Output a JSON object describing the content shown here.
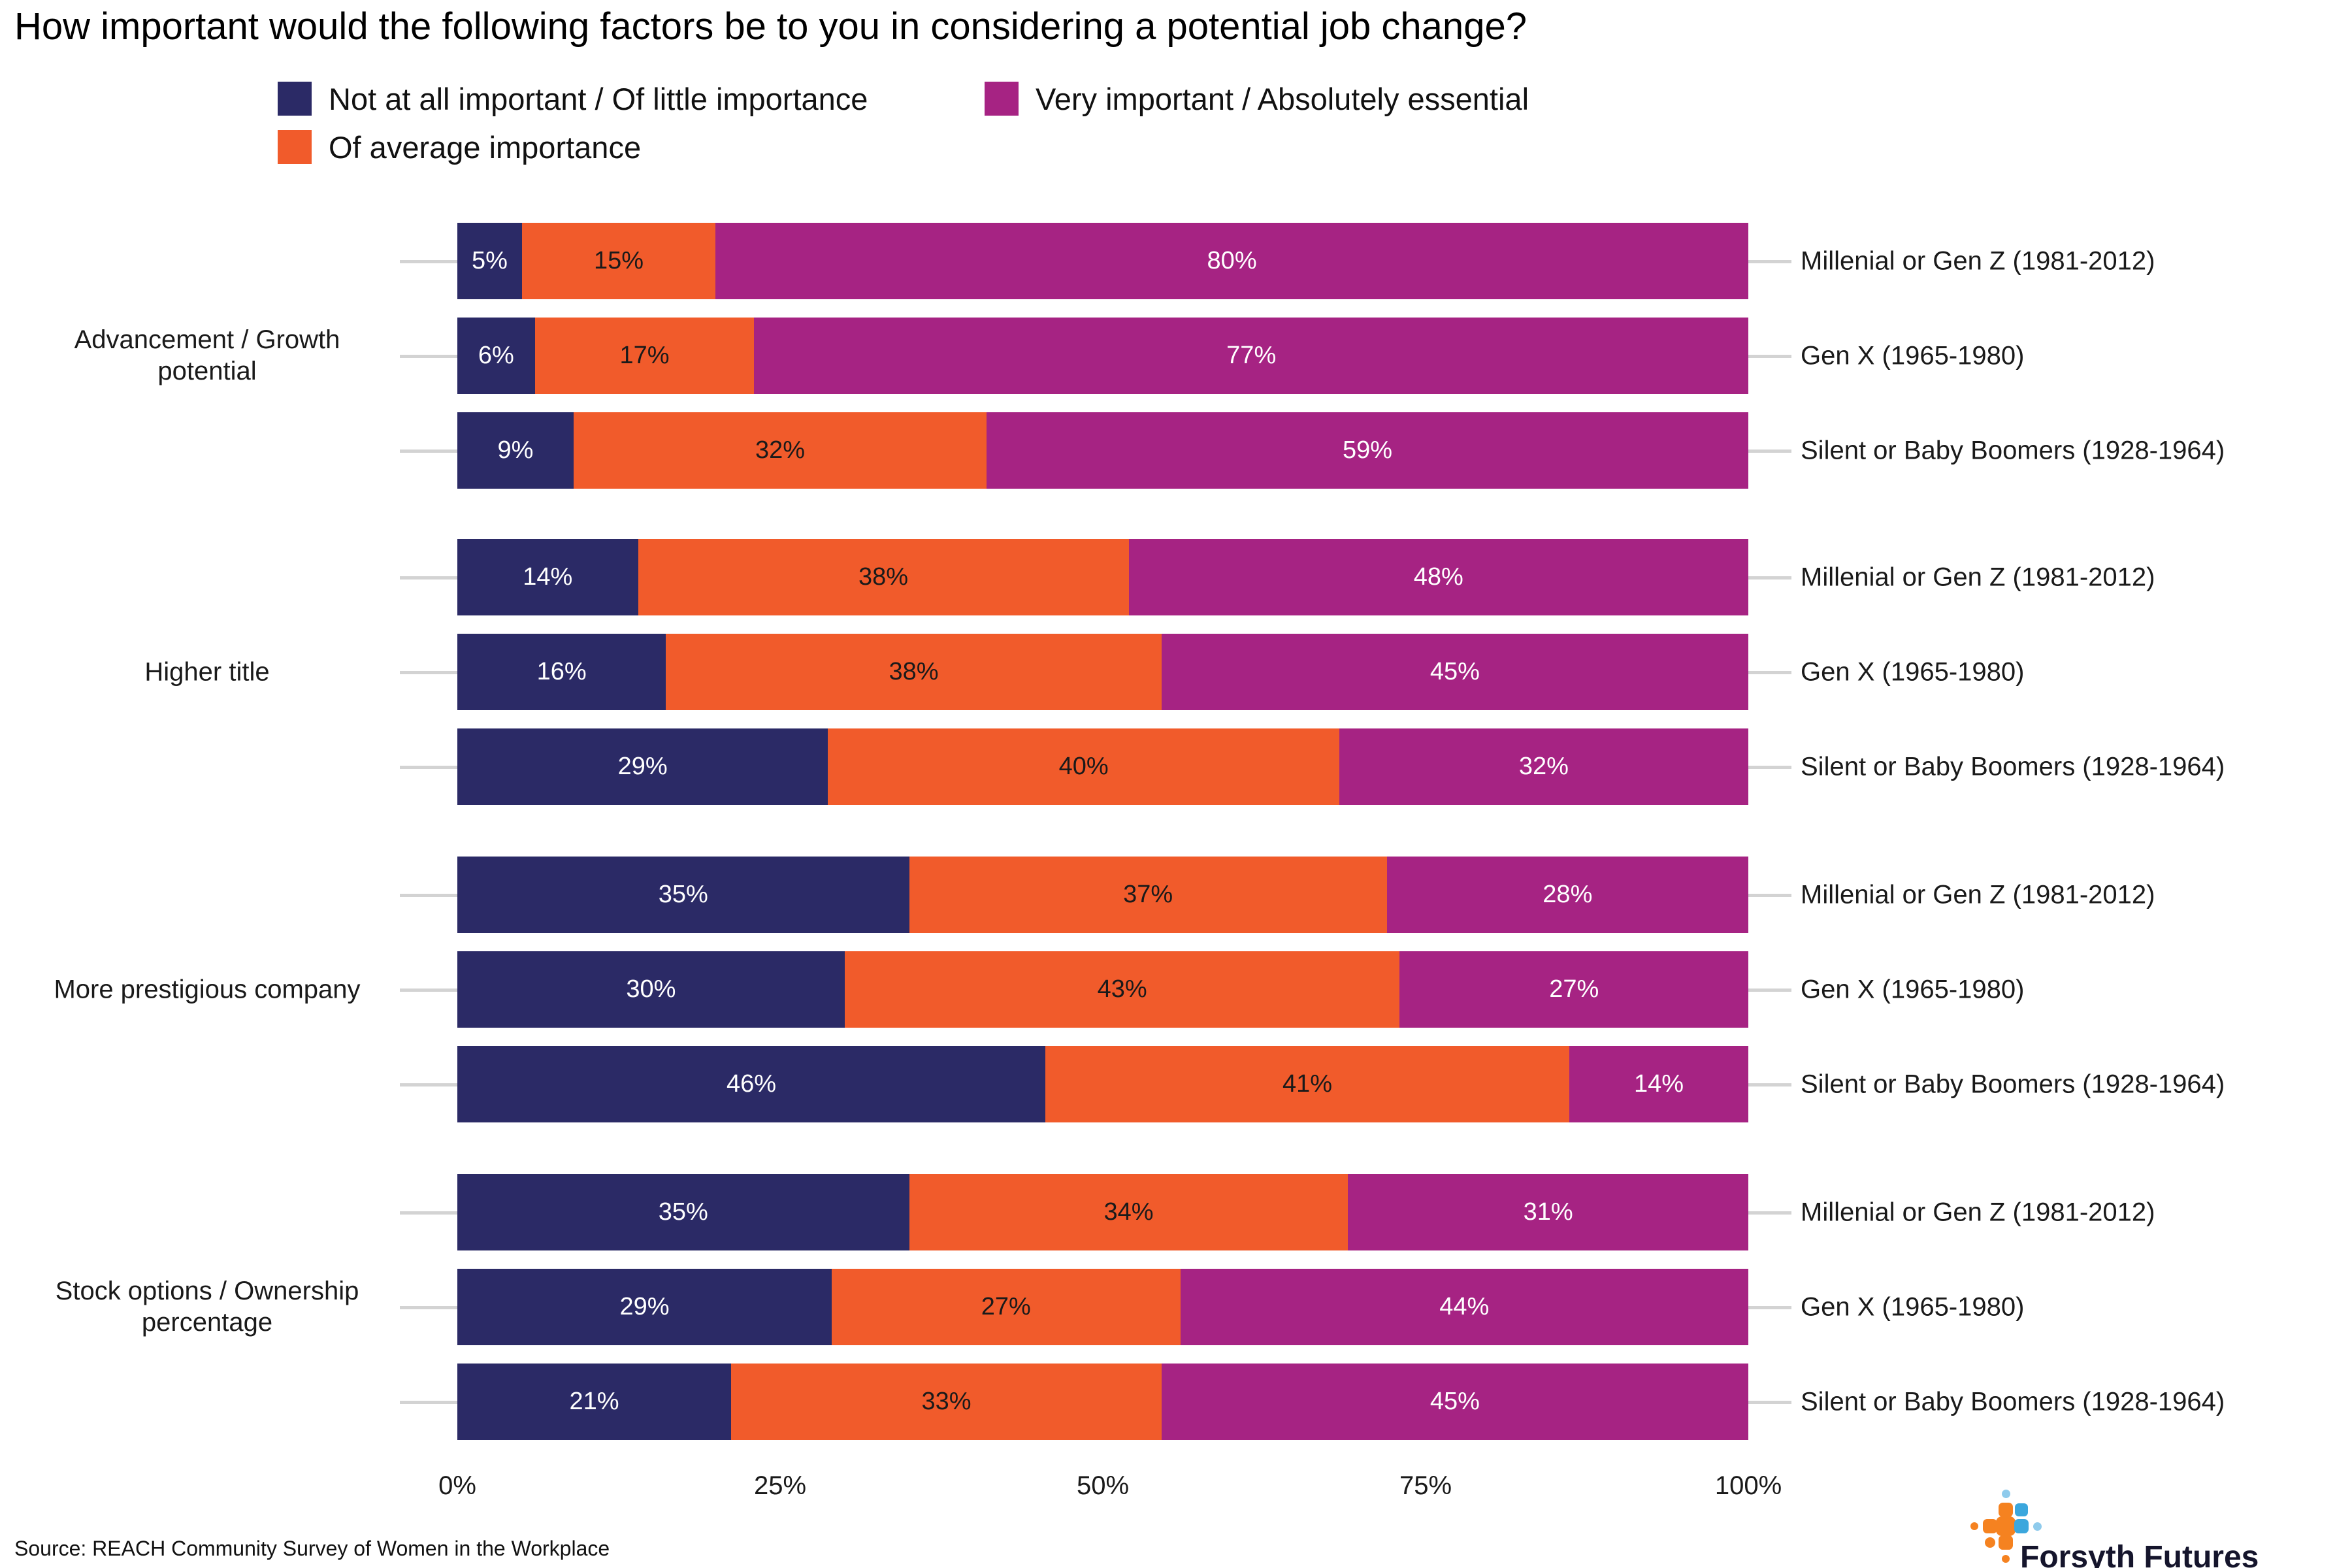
{
  "title": "How important would the following factors be to you in considering a potential job change?",
  "legend": {
    "items": [
      {
        "label": "Not at all important / Of little importance",
        "color": "#2b2a66"
      },
      {
        "label": "Of average importance",
        "color": "#f15b2b"
      },
      {
        "label": "Very important / Absolutely essential",
        "color": "#a62383"
      }
    ]
  },
  "chart_data": {
    "type": "bar",
    "stacked": true,
    "orientation": "horizontal",
    "title": "How important would the following factors be to you in considering a potential job change?",
    "value_unit": "%",
    "series_names": [
      "Not at all important / Of little importance",
      "Of average importance",
      "Very important / Absolutely essential"
    ],
    "series_colors": [
      "#2b2a66",
      "#f15b2b",
      "#a62383"
    ],
    "series_label_colors": [
      "#ffffff",
      "#1a1a1a",
      "#ffffff"
    ],
    "x_axis": {
      "ticks": [
        "0%",
        "25%",
        "50%",
        "75%",
        "100%"
      ],
      "range": [
        0,
        100
      ]
    },
    "legend_position": "top",
    "groups": [
      {
        "label": "Advancement / Growth potential",
        "rows": [
          {
            "label": "Millenial or Gen Z (1981-2012)",
            "values": [
              5,
              15,
              80
            ]
          },
          {
            "label": "Gen X (1965-1980)",
            "values": [
              6,
              17,
              77
            ]
          },
          {
            "label": "Silent or Baby Boomers (1928-1964)",
            "values": [
              9,
              32,
              59
            ]
          }
        ]
      },
      {
        "label": "Higher title",
        "rows": [
          {
            "label": "Millenial or Gen Z (1981-2012)",
            "values": [
              14,
              38,
              48
            ]
          },
          {
            "label": "Gen X (1965-1980)",
            "values": [
              16,
              38,
              45
            ]
          },
          {
            "label": "Silent or Baby Boomers (1928-1964)",
            "values": [
              29,
              40,
              32
            ]
          }
        ]
      },
      {
        "label": "More prestigious company",
        "rows": [
          {
            "label": "Millenial or Gen Z (1981-2012)",
            "values": [
              35,
              37,
              28
            ]
          },
          {
            "label": "Gen X (1965-1980)",
            "values": [
              30,
              43,
              27
            ]
          },
          {
            "label": "Silent or Baby Boomers (1928-1964)",
            "values": [
              46,
              41,
              14
            ]
          }
        ]
      },
      {
        "label": "Stock options / Ownership percentage",
        "rows": [
          {
            "label": "Millenial or Gen Z (1981-2012)",
            "values": [
              35,
              34,
              31
            ]
          },
          {
            "label": "Gen X (1965-1980)",
            "values": [
              29,
              27,
              44
            ]
          },
          {
            "label": "Silent or Baby Boomers (1928-1964)",
            "values": [
              21,
              33,
              45
            ]
          }
        ]
      }
    ]
  },
  "footer": {
    "source": "Source: REACH Community Survey of Women in the Workplace",
    "logo_text": "Forsyth Futures",
    "logo_colors": {
      "orange": "#f58220",
      "blue": "#3ba7dd",
      "light_blue": "#8fcbec"
    }
  }
}
